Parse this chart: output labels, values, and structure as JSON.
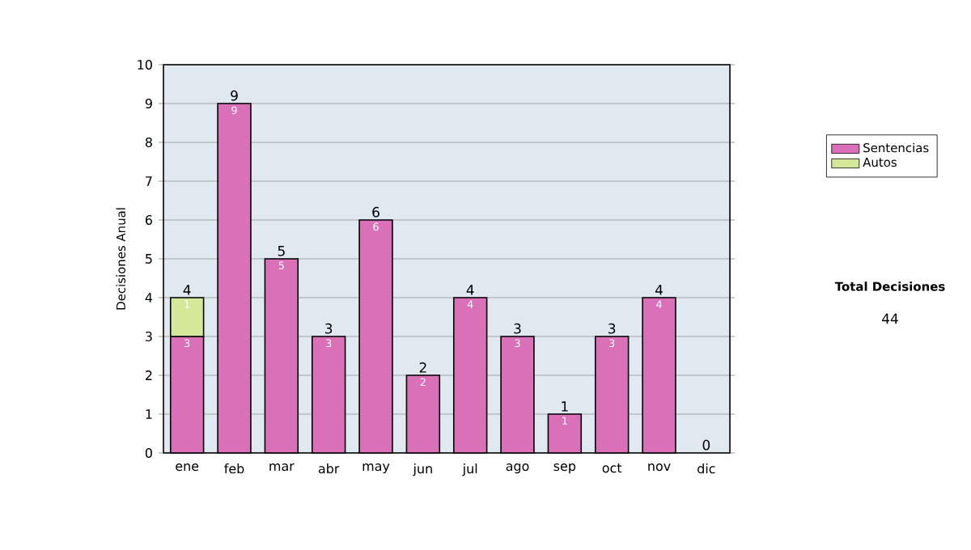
{
  "chart_data": {
    "type": "bar",
    "stacked": true,
    "ylabel": "Decisiones Anual",
    "categories": [
      "ene",
      "feb",
      "mar",
      "abr",
      "may",
      "jun",
      "jul",
      "ago",
      "sep",
      "oct",
      "nov",
      "dic"
    ],
    "series": [
      {
        "name": "Sentencias",
        "color": "#d970b8",
        "values": [
          3,
          9,
          5,
          3,
          6,
          2,
          4,
          3,
          1,
          3,
          4,
          0
        ],
        "value_labels": [
          "3",
          "9",
          "5",
          "3",
          "6",
          "2",
          "4",
          "3",
          "1",
          "3",
          "4",
          null
        ]
      },
      {
        "name": "Autos",
        "color": "#d4e89a",
        "values": [
          1,
          null,
          null,
          null,
          null,
          null,
          null,
          null,
          null,
          null,
          null,
          null
        ],
        "value_labels": [
          "1",
          null,
          null,
          null,
          null,
          null,
          null,
          null,
          null,
          null,
          null,
          null
        ]
      }
    ],
    "totals": [
      "4",
      "9",
      "5",
      "3",
      "6",
      "2",
      "4",
      "3",
      "1",
      "3",
      "4",
      "0"
    ],
    "ylim": [
      0,
      10
    ],
    "yticks": [
      0,
      1,
      2,
      3,
      4,
      5,
      6,
      7,
      8,
      9,
      10
    ],
    "grid": "y",
    "legend": "right",
    "annotations": [
      "Total Decisiones",
      "44"
    ]
  }
}
